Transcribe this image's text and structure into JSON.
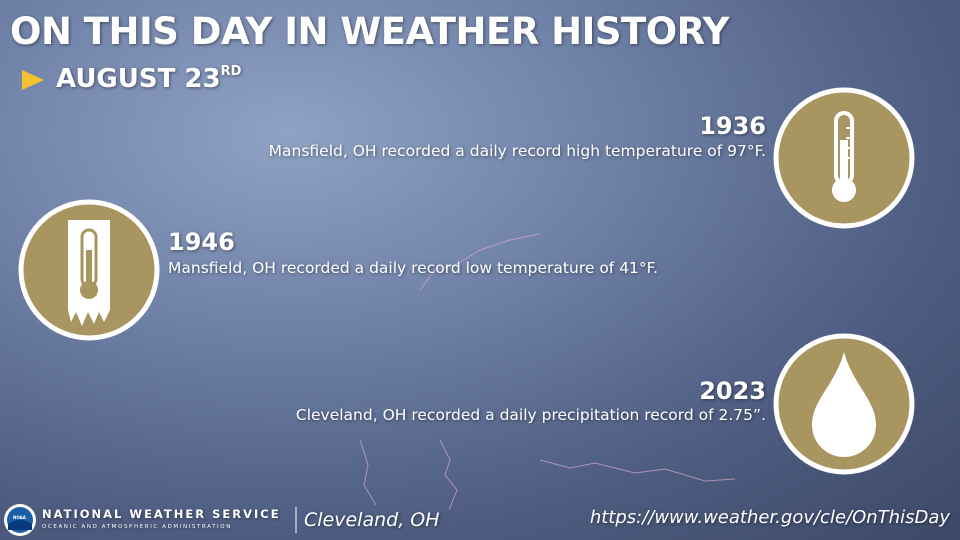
{
  "header": {
    "title": "ON THIS DAY IN WEATHER HISTORY",
    "date": "AUGUST 23",
    "date_suffix": "RD"
  },
  "events": [
    {
      "year": "1936",
      "text": "Mansfield, OH recorded a daily record high temperature of 97°F."
    },
    {
      "year": "1946",
      "text": "Mansfield, OH recorded a daily record low temperature of 41°F."
    },
    {
      "year": "2023",
      "text": "Cleveland, OH recorded a daily precipitation record of 2.75”."
    }
  ],
  "footer": {
    "logo": "NOAA",
    "agency": "NATIONAL WEATHER SERVICE",
    "agency_sub": "OCEANIC AND ATMOSPHERIC ADMINISTRATION",
    "office": "Cleveland, OH",
    "url": "https://www.weather.gov/cle/OnThisDay"
  }
}
